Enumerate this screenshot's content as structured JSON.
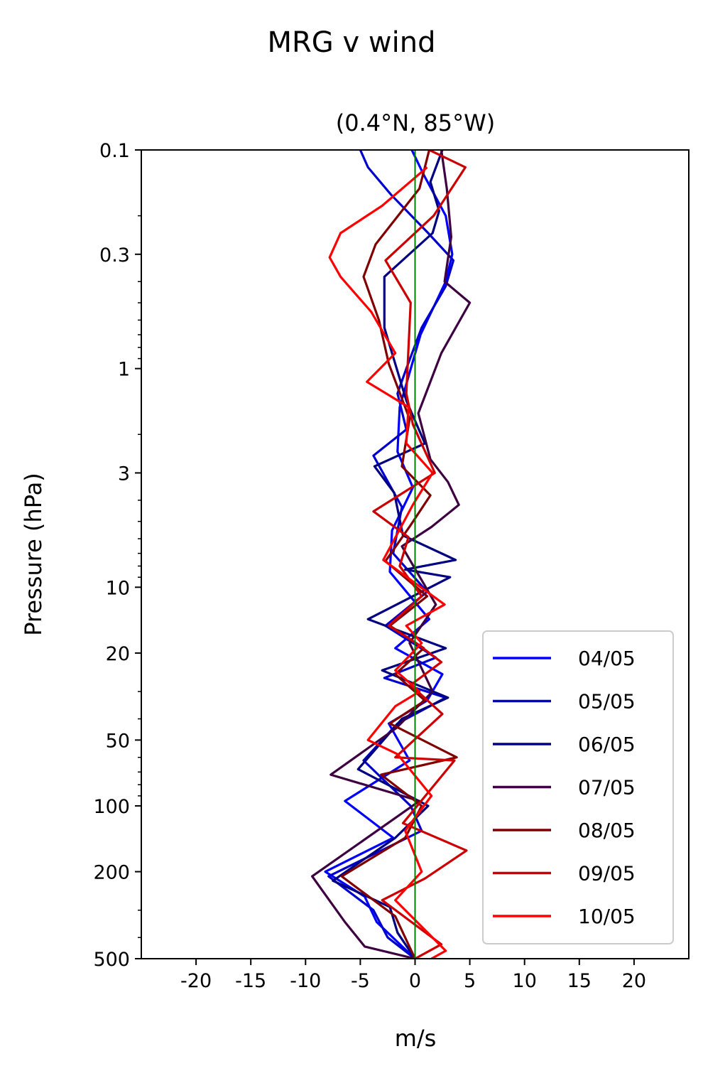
{
  "chart_data": {
    "type": "line",
    "title": "MRG v wind",
    "subtitle": "(0.4°N, 85°W)",
    "xlabel": "m/s",
    "ylabel": "Pressure (hPa)",
    "xlim": [
      -25,
      25
    ],
    "ylim": [
      500,
      0.1
    ],
    "yscale": "log",
    "xticks": [
      -20,
      -15,
      -10,
      -5,
      0,
      5,
      10,
      15,
      20
    ],
    "xtick_labels": [
      "-20",
      "-15",
      "-10",
      "-5",
      "0",
      "5",
      "10",
      "15",
      "20"
    ],
    "yticks": [
      0.1,
      0.3,
      1,
      3,
      10,
      20,
      50,
      100,
      200,
      500
    ],
    "ytick_labels": [
      "0.1",
      "0.3",
      "1",
      "3",
      "10",
      "20",
      "50",
      "100",
      "200",
      "500"
    ],
    "reference_line": {
      "x": 0,
      "color": "#008000"
    },
    "legend_position": "lower-right",
    "grid": false,
    "series": [
      {
        "name": "04/05",
        "color": "#0000ff",
        "points": [
          [
            -0.3,
            0.1
          ],
          [
            0.8,
            0.13
          ],
          [
            2.8,
            0.2
          ],
          [
            3.4,
            0.3
          ],
          [
            2.8,
            0.4
          ],
          [
            0.5,
            0.7
          ],
          [
            -1.4,
            1.5
          ],
          [
            -1.6,
            2.4
          ],
          [
            -0.2,
            3.5
          ],
          [
            -2.1,
            5.5
          ],
          [
            -2.3,
            8.5
          ],
          [
            1.3,
            14
          ],
          [
            -1.8,
            19
          ],
          [
            2.5,
            25
          ],
          [
            1.1,
            33
          ],
          [
            -2.4,
            42
          ],
          [
            -0.5,
            62
          ],
          [
            -6.4,
            95
          ],
          [
            -2,
            140
          ],
          [
            -8.2,
            200
          ],
          [
            -4.6,
            260
          ],
          [
            -3.5,
            340
          ],
          [
            0,
            500
          ]
        ]
      },
      {
        "name": "05/05",
        "color": "#0000cc",
        "points": [
          [
            -5,
            0.1
          ],
          [
            -4.3,
            0.12
          ],
          [
            -2.2,
            0.16
          ],
          [
            1.2,
            0.24
          ],
          [
            3.5,
            0.32
          ],
          [
            2.8,
            0.42
          ],
          [
            0.6,
            0.65
          ],
          [
            -0.8,
            1
          ],
          [
            -1.6,
            1.3
          ],
          [
            -0.8,
            1.9
          ],
          [
            -3.8,
            2.5
          ],
          [
            -1.2,
            4.3
          ],
          [
            -2,
            7
          ],
          [
            1.1,
            10.5
          ],
          [
            -2.7,
            15
          ],
          [
            1.9,
            21
          ],
          [
            -2.8,
            26
          ],
          [
            2.8,
            32
          ],
          [
            -1.6,
            42
          ],
          [
            -4.7,
            62
          ],
          [
            -0.4,
            100
          ],
          [
            0.6,
            130
          ],
          [
            -7.9,
            210
          ],
          [
            -3.8,
            300
          ],
          [
            -2.5,
            400
          ],
          [
            0,
            500
          ]
        ]
      },
      {
        "name": "06/05",
        "color": "#000080",
        "points": [
          [
            2.5,
            0.1
          ],
          [
            1.4,
            0.14
          ],
          [
            2.2,
            0.19
          ],
          [
            1.6,
            0.24
          ],
          [
            -2.8,
            0.38
          ],
          [
            -2.8,
            0.65
          ],
          [
            -0.8,
            1.4
          ],
          [
            0.9,
            2.2
          ],
          [
            -3.7,
            2.8
          ],
          [
            -1.9,
            3.7
          ],
          [
            -1.1,
            5.8
          ],
          [
            3.7,
            7.5
          ],
          [
            -0.9,
            8.3
          ],
          [
            3.2,
            9
          ],
          [
            -4.3,
            14
          ],
          [
            2.8,
            19
          ],
          [
            -3,
            24
          ],
          [
            3,
            32
          ],
          [
            -1.2,
            40
          ],
          [
            -5.2,
            68
          ],
          [
            1.2,
            100
          ],
          [
            -1.8,
            140
          ],
          [
            -7.5,
            220
          ],
          [
            -2.3,
            290
          ],
          [
            -1.6,
            380
          ],
          [
            0,
            500
          ]
        ]
      },
      {
        "name": "07/05",
        "color": "#3d0040",
        "points": [
          [
            2.4,
            0.1
          ],
          [
            2.9,
            0.15
          ],
          [
            3.3,
            0.25
          ],
          [
            2.7,
            0.4
          ],
          [
            5,
            0.5
          ],
          [
            2.4,
            0.85
          ],
          [
            0.3,
            1.6
          ],
          [
            1.4,
            2.6
          ],
          [
            3,
            3.3
          ],
          [
            4,
            4.2
          ],
          [
            1.5,
            5.3
          ],
          [
            -1.2,
            6.5
          ],
          [
            1.9,
            12
          ],
          [
            -0.5,
            18
          ],
          [
            1.6,
            30
          ],
          [
            -1.7,
            44
          ],
          [
            -7.7,
            72
          ],
          [
            0.4,
            95
          ],
          [
            -9.4,
            210
          ],
          [
            -6.4,
            340
          ],
          [
            -4.6,
            440
          ],
          [
            0,
            500
          ]
        ]
      },
      {
        "name": "08/05",
        "color": "#800000",
        "points": [
          [
            1.3,
            0.1
          ],
          [
            0.4,
            0.15
          ],
          [
            -3.6,
            0.27
          ],
          [
            -4.7,
            0.38
          ],
          [
            -3.3,
            0.6
          ],
          [
            -2.4,
            0.95
          ],
          [
            -0.5,
            1.7
          ],
          [
            -1.2,
            2.8
          ],
          [
            1.4,
            3.8
          ],
          [
            -0.4,
            5.2
          ],
          [
            -2.7,
            7.6
          ],
          [
            1.1,
            11
          ],
          [
            -2.3,
            15
          ],
          [
            0.8,
            19
          ],
          [
            -1.8,
            25
          ],
          [
            0.9,
            33
          ],
          [
            -2.3,
            42
          ],
          [
            3.8,
            60
          ],
          [
            -3.1,
            72
          ],
          [
            0.6,
            100
          ],
          [
            -0.9,
            140
          ],
          [
            -6.7,
            210
          ],
          [
            -1.8,
            320
          ],
          [
            0,
            500
          ]
        ]
      },
      {
        "name": "09/05",
        "color": "#cc0000",
        "points": [
          [
            1.3,
            0.1
          ],
          [
            4.6,
            0.12
          ],
          [
            1.7,
            0.2
          ],
          [
            -2.7,
            0.32
          ],
          [
            -0.4,
            0.5
          ],
          [
            -0.8,
            1.3
          ],
          [
            -0.2,
            1.8
          ],
          [
            1.8,
            3
          ],
          [
            -3.8,
            4.5
          ],
          [
            -0.6,
            5.9
          ],
          [
            -1.4,
            8
          ],
          [
            0.6,
            11
          ],
          [
            -2.4,
            15
          ],
          [
            0.1,
            18
          ],
          [
            2.4,
            22
          ],
          [
            -0.4,
            28
          ],
          [
            2.5,
            38
          ],
          [
            3.6,
            62
          ],
          [
            -1.8,
            60
          ],
          [
            1.1,
            88
          ],
          [
            -1.1,
            120
          ],
          [
            4.7,
            160
          ],
          [
            0.9,
            215
          ],
          [
            -3,
            270
          ],
          [
            2.4,
            430
          ],
          [
            0,
            500
          ]
        ]
      },
      {
        "name": "10/05",
        "color": "#ff0000",
        "points": [
          [
            1.1,
            0.12
          ],
          [
            -3,
            0.18
          ],
          [
            -6.8,
            0.24
          ],
          [
            -7.8,
            0.31
          ],
          [
            -6.8,
            0.38
          ],
          [
            -4,
            0.55
          ],
          [
            -1.8,
            0.85
          ],
          [
            -4.4,
            1.15
          ],
          [
            -0.6,
            1.5
          ],
          [
            -0.8,
            2.2
          ],
          [
            1.6,
            3
          ],
          [
            -0.2,
            4.2
          ],
          [
            -2.9,
            7.5
          ],
          [
            2.7,
            12
          ],
          [
            -0.8,
            15
          ],
          [
            0.6,
            18
          ],
          [
            -1.8,
            24
          ],
          [
            0.4,
            30
          ],
          [
            -1.8,
            35
          ],
          [
            -4.3,
            50
          ],
          [
            -1.6,
            58
          ],
          [
            1.5,
            90
          ],
          [
            -0.9,
            130
          ],
          [
            0.6,
            200
          ],
          [
            -1.8,
            270
          ],
          [
            2.8,
            460
          ],
          [
            1.5,
            500
          ]
        ]
      }
    ]
  }
}
